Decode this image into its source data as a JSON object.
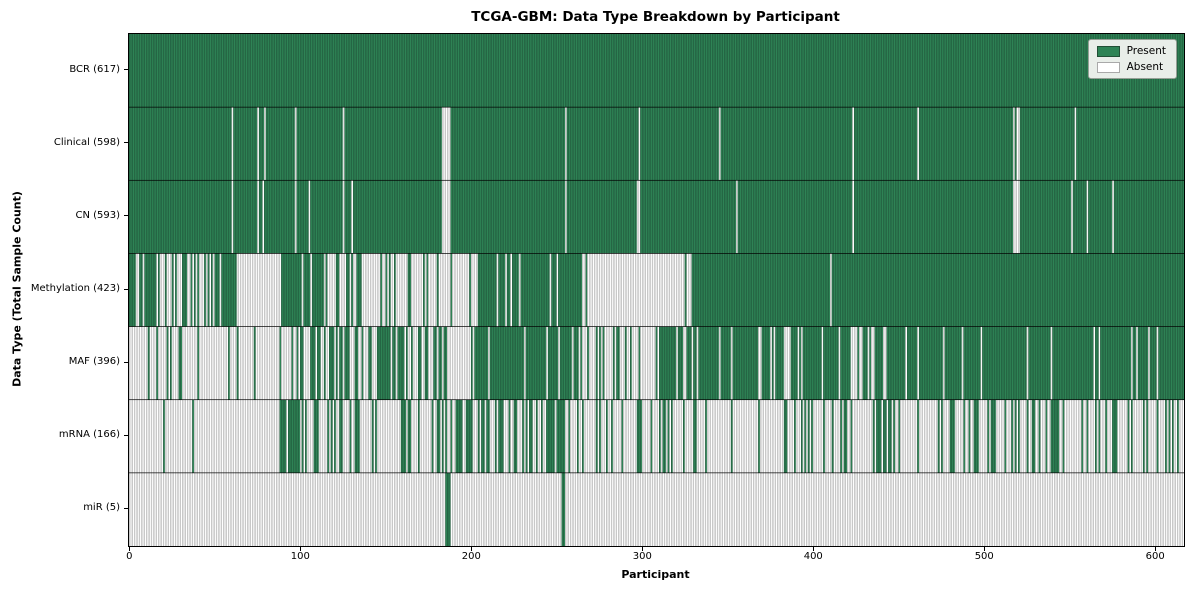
{
  "chart_data": {
    "type": "heatmap",
    "title": "TCGA-GBM: Data Type Breakdown by Participant",
    "xlabel": "Participant",
    "ylabel": "Data Type (Total Sample Count)",
    "n_participants": 617,
    "x_ticks": [
      0,
      100,
      200,
      300,
      400,
      500,
      600
    ],
    "xlim": [
      0,
      617
    ],
    "grid": false,
    "legend": {
      "position": "upper-right",
      "entries": [
        {
          "label": "Present",
          "color": "#2e8355"
        },
        {
          "label": "Absent",
          "color": "#ffffff"
        }
      ]
    },
    "colors": {
      "present_fill": "#2e8355",
      "present_edge": "#1f5138",
      "absent_fill": "#ffffff",
      "absent_edge": "#9c9c9c",
      "row_separator": "#000000",
      "plot_border": "#000000"
    },
    "seed": 42,
    "rows": [
      {
        "label": "BCR (617)",
        "data_type": "BCR",
        "present_count": 617,
        "pattern": {
          "all": true
        }
      },
      {
        "label": "Clinical (598)",
        "data_type": "Clinical",
        "present_count": 598,
        "pattern": {
          "absent_indices": [
            60,
            75,
            79,
            97,
            125,
            183,
            184,
            185,
            186,
            187,
            255,
            298,
            345,
            423,
            461,
            517,
            519,
            520,
            553
          ]
        }
      },
      {
        "label": "CN (593)",
        "data_type": "CN",
        "present_count": 593,
        "pattern": {
          "absent_indices": [
            60,
            75,
            78,
            97,
            105,
            125,
            130,
            183,
            184,
            185,
            186,
            187,
            255,
            297,
            298,
            355,
            423,
            517,
            518,
            519,
            520,
            551,
            560,
            575
          ]
        }
      },
      {
        "label": "Methylation (423)",
        "data_type": "Methylation",
        "present_count": 423,
        "pattern": {
          "segments": [
            {
              "start": 0,
              "end": 57,
              "p_present": 0.52
            },
            {
              "start": 57,
              "end": 63,
              "p_present": 1.0
            },
            {
              "start": 63,
              "end": 89,
              "p_present": 0.08
            },
            {
              "start": 89,
              "end": 113,
              "p_present": 0.85
            },
            {
              "start": 113,
              "end": 137,
              "p_present": 0.5
            },
            {
              "start": 137,
              "end": 183,
              "p_present": 0.25
            },
            {
              "start": 183,
              "end": 203,
              "p_present": 0.1
            },
            {
              "start": 203,
              "end": 265,
              "p_present": 0.93
            },
            {
              "start": 265,
              "end": 329,
              "p_present": 0.02
            },
            {
              "start": 329,
              "end": 410,
              "p_present": 1.0
            },
            {
              "start": 410,
              "end": 411,
              "p_present": 0.0
            },
            {
              "start": 411,
              "end": 617,
              "p_present": 1.0
            }
          ]
        }
      },
      {
        "label": "MAF (396)",
        "data_type": "MAF",
        "present_count": 396,
        "pattern": {
          "segments": [
            {
              "start": 0,
              "end": 20,
              "p_present": 0.15
            },
            {
              "start": 20,
              "end": 33,
              "p_present": 0.55
            },
            {
              "start": 33,
              "end": 94,
              "p_present": 0.07
            },
            {
              "start": 94,
              "end": 113,
              "p_present": 0.6
            },
            {
              "start": 113,
              "end": 136,
              "p_present": 0.4
            },
            {
              "start": 136,
              "end": 163,
              "p_present": 0.65
            },
            {
              "start": 163,
              "end": 172,
              "p_present": 0.1
            },
            {
              "start": 172,
              "end": 190,
              "p_present": 0.65
            },
            {
              "start": 190,
              "end": 200,
              "p_present": 0.15
            },
            {
              "start": 200,
              "end": 265,
              "p_present": 0.9
            },
            {
              "start": 265,
              "end": 310,
              "p_present": 0.15
            },
            {
              "start": 310,
              "end": 420,
              "p_present": 0.8
            },
            {
              "start": 420,
              "end": 436,
              "p_present": 0.3
            },
            {
              "start": 436,
              "end": 617,
              "p_present": 0.92
            }
          ]
        }
      },
      {
        "label": "mRNA (166)",
        "data_type": "mRNA",
        "present_count": 166,
        "pattern": {
          "segments": [
            {
              "start": 0,
              "end": 88,
              "p_present": 0.03
            },
            {
              "start": 88,
              "end": 102,
              "p_present": 0.8
            },
            {
              "start": 102,
              "end": 146,
              "p_present": 0.35
            },
            {
              "start": 146,
              "end": 188,
              "p_present": 0.25
            },
            {
              "start": 188,
              "end": 210,
              "p_present": 0.6
            },
            {
              "start": 210,
              "end": 229,
              "p_present": 0.35
            },
            {
              "start": 229,
              "end": 254,
              "p_present": 0.7
            },
            {
              "start": 254,
              "end": 297,
              "p_present": 0.15
            },
            {
              "start": 297,
              "end": 300,
              "p_present": 0.9
            },
            {
              "start": 300,
              "end": 310,
              "p_present": 0.05
            },
            {
              "start": 310,
              "end": 617,
              "p_present": 0.27
            }
          ]
        }
      },
      {
        "label": "miR (5)",
        "data_type": "miR",
        "present_count": 5,
        "pattern": {
          "present_indices": [
            185,
            186,
            187,
            253,
            254
          ]
        }
      }
    ]
  }
}
